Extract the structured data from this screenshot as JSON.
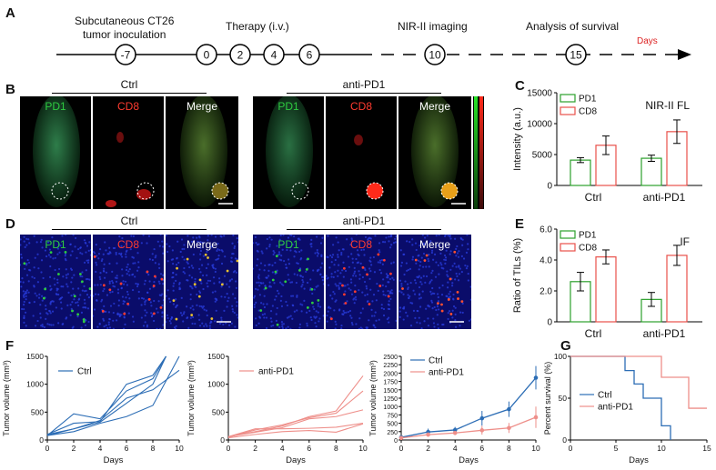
{
  "panels": {
    "A": "A",
    "B": "B",
    "C": "C",
    "D": "D",
    "E": "E",
    "F": "F",
    "G": "G"
  },
  "timeline": {
    "labels": [
      "Subcutaneous CT26\ntumor inoculation",
      "Therapy (i.v.)",
      "NIR-II imaging",
      "Analysis of survival"
    ],
    "points": [
      "-7",
      "0",
      "2",
      "4",
      "6",
      "10",
      "15"
    ],
    "axis_label": "Days"
  },
  "groups": {
    "ctrl": "Ctrl",
    "anti": "anti-PD1"
  },
  "channels": {
    "pd1": "PD1",
    "cd8": "CD8",
    "merge": "Merge"
  },
  "colors": {
    "green": "#2ca02c",
    "red": "#e8504a",
    "blue": "#2c6db5",
    "pink": "#ee8f8a"
  },
  "chart_data": [
    {
      "id": "C",
      "type": "bar",
      "categories": [
        "Ctrl",
        "anti-PD1"
      ],
      "series": [
        {
          "name": "PD1",
          "values": [
            4100,
            4400
          ],
          "errors": [
            400,
            500
          ]
        },
        {
          "name": "CD8",
          "values": [
            6500,
            8700
          ],
          "errors": [
            1500,
            1900
          ]
        }
      ],
      "title": "NIR-II FL",
      "ylabel": "Intensity (a.u.)",
      "ylim": [
        0,
        15000
      ],
      "yticks": [
        "0",
        "5000",
        "10000",
        "15000"
      ],
      "legend": "top-left"
    },
    {
      "id": "E",
      "type": "bar",
      "categories": [
        "Ctrl",
        "anti-PD1"
      ],
      "series": [
        {
          "name": "PD1",
          "values": [
            2.6,
            1.45
          ],
          "errors": [
            0.6,
            0.45
          ]
        },
        {
          "name": "CD8",
          "values": [
            4.2,
            4.3
          ],
          "errors": [
            0.45,
            0.65
          ]
        }
      ],
      "title": "IF",
      "ylabel": "Ratio of TILs (%)",
      "ylim": [
        0,
        6
      ],
      "yticks": [
        "0",
        "2.0",
        "4.0",
        "6.0"
      ],
      "legend": "top-left"
    },
    {
      "id": "F1",
      "type": "line",
      "legend_label": "Ctrl",
      "xlabel": "Days",
      "ylabel": "Tumor volume (mm³)",
      "xlim": [
        0,
        10
      ],
      "ylim": [
        0,
        1500
      ],
      "xticks": [
        "0",
        "2",
        "4",
        "6",
        "8",
        "10"
      ],
      "yticks": [
        "0",
        "500",
        "1000",
        "1500"
      ],
      "series": [
        {
          "x": [
            0,
            2,
            4,
            6,
            8,
            9
          ],
          "y": [
            80,
            470,
            380,
            880,
            1100,
            1500
          ]
        },
        {
          "x": [
            0,
            2,
            4,
            6,
            8,
            9
          ],
          "y": [
            100,
            300,
            330,
            1000,
            1160,
            1500
          ]
        },
        {
          "x": [
            0,
            2,
            4,
            6,
            8,
            10
          ],
          "y": [
            100,
            200,
            350,
            750,
            900,
            1250
          ]
        },
        {
          "x": [
            0,
            2,
            4,
            6,
            8,
            9
          ],
          "y": [
            80,
            200,
            320,
            660,
            1000,
            1500
          ]
        },
        {
          "x": [
            0,
            2,
            4,
            6,
            8,
            10
          ],
          "y": [
            80,
            150,
            300,
            420,
            620,
            1500
          ]
        }
      ]
    },
    {
      "id": "F2",
      "type": "line",
      "legend_label": "anti-PD1",
      "xlabel": "Days",
      "ylabel": "Tumor volume (mm³)",
      "xlim": [
        0,
        10
      ],
      "ylim": [
        0,
        1500
      ],
      "xticks": [
        "0",
        "2",
        "4",
        "6",
        "8",
        "10"
      ],
      "yticks": [
        "0",
        "500",
        "1000",
        "1500"
      ],
      "series": [
        {
          "x": [
            0,
            2,
            4,
            6,
            8,
            10
          ],
          "y": [
            60,
            150,
            250,
            420,
            520,
            1150
          ]
        },
        {
          "x": [
            0,
            2,
            4,
            6,
            8,
            10
          ],
          "y": [
            50,
            180,
            270,
            400,
            480,
            880
          ]
        },
        {
          "x": [
            0,
            2,
            4,
            6,
            8,
            10
          ],
          "y": [
            60,
            140,
            220,
            380,
            420,
            540
          ]
        },
        {
          "x": [
            0,
            2,
            4,
            6,
            8,
            10
          ],
          "y": [
            60,
            200,
            200,
            210,
            230,
            300
          ]
        },
        {
          "x": [
            0,
            2,
            4,
            6,
            8,
            10
          ],
          "y": [
            40,
            100,
            150,
            170,
            140,
            290
          ]
        }
      ]
    },
    {
      "id": "F3",
      "type": "line",
      "xlabel": "Days",
      "ylabel": "Tumor volume (mm³)",
      "xlim": [
        0,
        10
      ],
      "ylim": [
        0,
        2500
      ],
      "xticks": [
        "0",
        "2",
        "4",
        "6",
        "8",
        "10"
      ],
      "yticks": [
        "0",
        "250",
        "500",
        "750",
        "1000",
        "1250",
        "1500",
        "1750",
        "2000",
        "2250",
        "2500"
      ],
      "series": [
        {
          "name": "Ctrl",
          "x": [
            0,
            2,
            4,
            6,
            8,
            10
          ],
          "y": [
            80,
            240,
            300,
            650,
            920,
            1860
          ],
          "err": [
            40,
            100,
            90,
            220,
            230,
            350
          ]
        },
        {
          "name": "anti-PD1",
          "x": [
            0,
            2,
            4,
            6,
            8,
            10
          ],
          "y": [
            60,
            160,
            210,
            290,
            360,
            680
          ],
          "err": [
            30,
            60,
            60,
            130,
            150,
            320
          ]
        }
      ]
    },
    {
      "id": "G",
      "type": "line",
      "xlabel": "Days",
      "ylabel": "Percent survival (%)",
      "xlim": [
        0,
        15
      ],
      "ylim": [
        0,
        100
      ],
      "xticks": [
        "0",
        "5",
        "10",
        "15"
      ],
      "yticks": [
        "0",
        "50",
        "100"
      ],
      "series": [
        {
          "name": "Ctrl",
          "x": [
            0,
            6,
            6,
            7,
            7,
            8,
            8,
            10,
            10,
            11,
            11
          ],
          "y": [
            100,
            100,
            83,
            83,
            67,
            67,
            50,
            50,
            17,
            17,
            0
          ]
        },
        {
          "name": "anti-PD1",
          "x": [
            0,
            10,
            10,
            13,
            13,
            15
          ],
          "y": [
            100,
            100,
            75,
            75,
            38,
            38
          ]
        }
      ]
    }
  ]
}
